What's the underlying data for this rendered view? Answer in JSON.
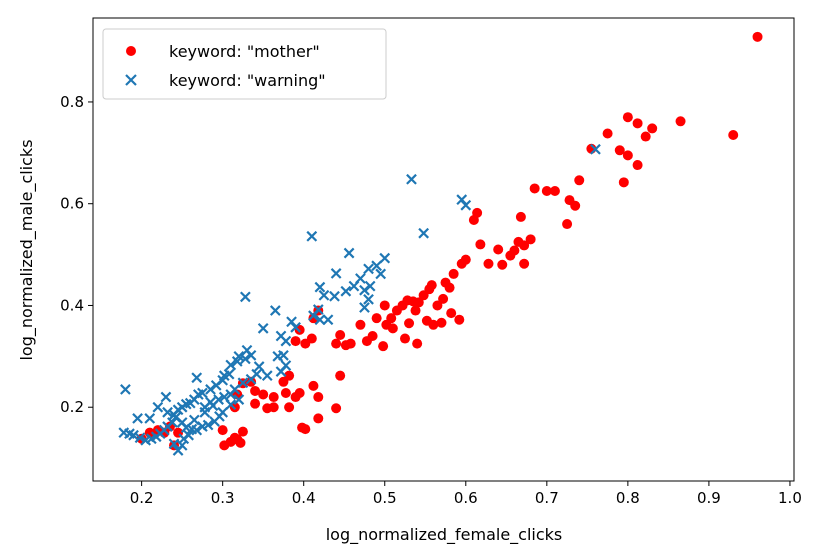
{
  "chart_data": {
    "type": "scatter",
    "xlabel": "log_normalized_female_clicks",
    "ylabel": "log_normalized_male_clicks",
    "xlim": [
      0.14,
      1.005
    ],
    "ylim": [
      0.055,
      0.965
    ],
    "xticks": [
      {
        "value": 0.2,
        "label": "0.2"
      },
      {
        "value": 0.3,
        "label": "0.3"
      },
      {
        "value": 0.4,
        "label": "0.4"
      },
      {
        "value": 0.5,
        "label": "0.5"
      },
      {
        "value": 0.6,
        "label": "0.6"
      },
      {
        "value": 0.7,
        "label": "0.7"
      },
      {
        "value": 0.8,
        "label": "0.8"
      },
      {
        "value": 0.9,
        "label": "0.9"
      },
      {
        "value": 1.0,
        "label": "1.0"
      }
    ],
    "yticks": [
      {
        "value": 0.2,
        "label": "0.2"
      },
      {
        "value": 0.4,
        "label": "0.4"
      },
      {
        "value": 0.6,
        "label": "0.6"
      },
      {
        "value": 0.8,
        "label": "0.8"
      }
    ],
    "grid": false,
    "legend_position": "top-left",
    "series": [
      {
        "name": "keyword: \"mother\"",
        "marker": "circle",
        "color": "#ff0000",
        "points": [
          [
            0.96,
            0.928
          ],
          [
            0.93,
            0.735
          ],
          [
            0.865,
            0.762
          ],
          [
            0.83,
            0.748
          ],
          [
            0.822,
            0.732
          ],
          [
            0.812,
            0.758
          ],
          [
            0.8,
            0.77
          ],
          [
            0.812,
            0.676
          ],
          [
            0.8,
            0.695
          ],
          [
            0.79,
            0.705
          ],
          [
            0.795,
            0.642
          ],
          [
            0.775,
            0.738
          ],
          [
            0.755,
            0.708
          ],
          [
            0.74,
            0.646
          ],
          [
            0.735,
            0.596
          ],
          [
            0.728,
            0.607
          ],
          [
            0.725,
            0.56
          ],
          [
            0.71,
            0.625
          ],
          [
            0.7,
            0.625
          ],
          [
            0.685,
            0.63
          ],
          [
            0.68,
            0.53
          ],
          [
            0.672,
            0.518
          ],
          [
            0.668,
            0.574
          ],
          [
            0.672,
            0.482
          ],
          [
            0.665,
            0.525
          ],
          [
            0.66,
            0.508
          ],
          [
            0.655,
            0.498
          ],
          [
            0.645,
            0.48
          ],
          [
            0.64,
            0.51
          ],
          [
            0.628,
            0.482
          ],
          [
            0.61,
            0.568
          ],
          [
            0.614,
            0.582
          ],
          [
            0.618,
            0.52
          ],
          [
            0.6,
            0.49
          ],
          [
            0.595,
            0.482
          ],
          [
            0.585,
            0.462
          ],
          [
            0.58,
            0.435
          ],
          [
            0.575,
            0.445
          ],
          [
            0.572,
            0.413
          ],
          [
            0.565,
            0.4
          ],
          [
            0.558,
            0.44
          ],
          [
            0.555,
            0.432
          ],
          [
            0.548,
            0.42
          ],
          [
            0.542,
            0.406
          ],
          [
            0.535,
            0.408
          ],
          [
            0.528,
            0.41
          ],
          [
            0.522,
            0.4
          ],
          [
            0.515,
            0.39
          ],
          [
            0.508,
            0.375
          ],
          [
            0.502,
            0.362
          ],
          [
            0.5,
            0.4
          ],
          [
            0.49,
            0.375
          ],
          [
            0.485,
            0.34
          ],
          [
            0.478,
            0.33
          ],
          [
            0.47,
            0.362
          ],
          [
            0.458,
            0.325
          ],
          [
            0.452,
            0.322
          ],
          [
            0.445,
            0.342
          ],
          [
            0.44,
            0.325
          ],
          [
            0.418,
            0.39
          ],
          [
            0.412,
            0.375
          ],
          [
            0.41,
            0.335
          ],
          [
            0.402,
            0.325
          ],
          [
            0.395,
            0.352
          ],
          [
            0.39,
            0.33
          ],
          [
            0.382,
            0.262
          ],
          [
            0.378,
            0.228
          ],
          [
            0.39,
            0.22
          ],
          [
            0.398,
            0.16
          ],
          [
            0.402,
            0.157
          ],
          [
            0.382,
            0.2
          ],
          [
            0.395,
            0.228
          ],
          [
            0.445,
            0.262
          ],
          [
            0.44,
            0.198
          ],
          [
            0.412,
            0.242
          ],
          [
            0.418,
            0.22
          ],
          [
            0.418,
            0.178
          ],
          [
            0.525,
            0.335
          ],
          [
            0.54,
            0.325
          ],
          [
            0.552,
            0.37
          ],
          [
            0.56,
            0.362
          ],
          [
            0.57,
            0.366
          ],
          [
            0.582,
            0.385
          ],
          [
            0.592,
            0.372
          ],
          [
            0.538,
            0.39
          ],
          [
            0.53,
            0.365
          ],
          [
            0.51,
            0.355
          ],
          [
            0.498,
            0.32
          ],
          [
            0.34,
            0.207
          ],
          [
            0.355,
            0.198
          ],
          [
            0.363,
            0.2
          ],
          [
            0.35,
            0.225
          ],
          [
            0.34,
            0.232
          ],
          [
            0.335,
            0.25
          ],
          [
            0.325,
            0.247
          ],
          [
            0.318,
            0.225
          ],
          [
            0.315,
            0.14
          ],
          [
            0.31,
            0.132
          ],
          [
            0.302,
            0.125
          ],
          [
            0.3,
            0.155
          ],
          [
            0.318,
            0.137
          ],
          [
            0.325,
            0.152
          ],
          [
            0.322,
            0.13
          ],
          [
            0.363,
            0.22
          ],
          [
            0.375,
            0.25
          ],
          [
            0.315,
            0.2
          ],
          [
            0.24,
            0.125
          ],
          [
            0.245,
            0.15
          ],
          [
            0.235,
            0.162
          ],
          [
            0.228,
            0.15
          ],
          [
            0.22,
            0.155
          ],
          [
            0.21,
            0.15
          ],
          [
            0.2,
            0.138
          ]
        ]
      },
      {
        "name": "keyword: \"warning\"",
        "marker": "x",
        "color": "#1f77b4",
        "points": [
          [
            0.76,
            0.707
          ],
          [
            0.595,
            0.608
          ],
          [
            0.6,
            0.597
          ],
          [
            0.533,
            0.648
          ],
          [
            0.548,
            0.542
          ],
          [
            0.41,
            0.536
          ],
          [
            0.456,
            0.503
          ],
          [
            0.5,
            0.493
          ],
          [
            0.49,
            0.478
          ],
          [
            0.48,
            0.472
          ],
          [
            0.495,
            0.462
          ],
          [
            0.47,
            0.453
          ],
          [
            0.482,
            0.438
          ],
          [
            0.44,
            0.463
          ],
          [
            0.462,
            0.438
          ],
          [
            0.452,
            0.428
          ],
          [
            0.475,
            0.43
          ],
          [
            0.438,
            0.418
          ],
          [
            0.42,
            0.436
          ],
          [
            0.48,
            0.412
          ],
          [
            0.425,
            0.42
          ],
          [
            0.475,
            0.396
          ],
          [
            0.418,
            0.392
          ],
          [
            0.412,
            0.38
          ],
          [
            0.42,
            0.372
          ],
          [
            0.43,
            0.372
          ],
          [
            0.328,
            0.417
          ],
          [
            0.35,
            0.355
          ],
          [
            0.365,
            0.39
          ],
          [
            0.372,
            0.34
          ],
          [
            0.378,
            0.33
          ],
          [
            0.385,
            0.368
          ],
          [
            0.39,
            0.357
          ],
          [
            0.368,
            0.3
          ],
          [
            0.375,
            0.302
          ],
          [
            0.378,
            0.282
          ],
          [
            0.372,
            0.27
          ],
          [
            0.355,
            0.262
          ],
          [
            0.345,
            0.28
          ],
          [
            0.335,
            0.302
          ],
          [
            0.33,
            0.312
          ],
          [
            0.328,
            0.295
          ],
          [
            0.32,
            0.3
          ],
          [
            0.318,
            0.29
          ],
          [
            0.31,
            0.283
          ],
          [
            0.308,
            0.265
          ],
          [
            0.302,
            0.262
          ],
          [
            0.3,
            0.253
          ],
          [
            0.292,
            0.243
          ],
          [
            0.285,
            0.235
          ],
          [
            0.275,
            0.228
          ],
          [
            0.27,
            0.225
          ],
          [
            0.265,
            0.215
          ],
          [
            0.26,
            0.208
          ],
          [
            0.255,
            0.206
          ],
          [
            0.25,
            0.2
          ],
          [
            0.245,
            0.195
          ],
          [
            0.24,
            0.185
          ],
          [
            0.238,
            0.17
          ],
          [
            0.232,
            0.162
          ],
          [
            0.228,
            0.155
          ],
          [
            0.223,
            0.148
          ],
          [
            0.218,
            0.142
          ],
          [
            0.212,
            0.138
          ],
          [
            0.205,
            0.135
          ],
          [
            0.198,
            0.14
          ],
          [
            0.19,
            0.145
          ],
          [
            0.185,
            0.148
          ],
          [
            0.178,
            0.15
          ],
          [
            0.18,
            0.235
          ],
          [
            0.195,
            0.178
          ],
          [
            0.21,
            0.178
          ],
          [
            0.22,
            0.2
          ],
          [
            0.23,
            0.22
          ],
          [
            0.232,
            0.19
          ],
          [
            0.242,
            0.18
          ],
          [
            0.25,
            0.17
          ],
          [
            0.255,
            0.16
          ],
          [
            0.262,
            0.157
          ],
          [
            0.268,
            0.155
          ],
          [
            0.275,
            0.162
          ],
          [
            0.282,
            0.165
          ],
          [
            0.29,
            0.172
          ],
          [
            0.296,
            0.182
          ],
          [
            0.3,
            0.19
          ],
          [
            0.31,
            0.205
          ],
          [
            0.32,
            0.215
          ],
          [
            0.278,
            0.2
          ],
          [
            0.285,
            0.21
          ],
          [
            0.268,
            0.258
          ],
          [
            0.25,
            0.125
          ],
          [
            0.245,
            0.115
          ],
          [
            0.24,
            0.128
          ],
          [
            0.252,
            0.138
          ],
          [
            0.258,
            0.145
          ],
          [
            0.265,
            0.175
          ],
          [
            0.278,
            0.19
          ],
          [
            0.288,
            0.203
          ],
          [
            0.295,
            0.215
          ],
          [
            0.302,
            0.22
          ],
          [
            0.31,
            0.225
          ],
          [
            0.315,
            0.235
          ],
          [
            0.325,
            0.248
          ],
          [
            0.335,
            0.255
          ],
          [
            0.342,
            0.265
          ]
        ]
      }
    ]
  }
}
